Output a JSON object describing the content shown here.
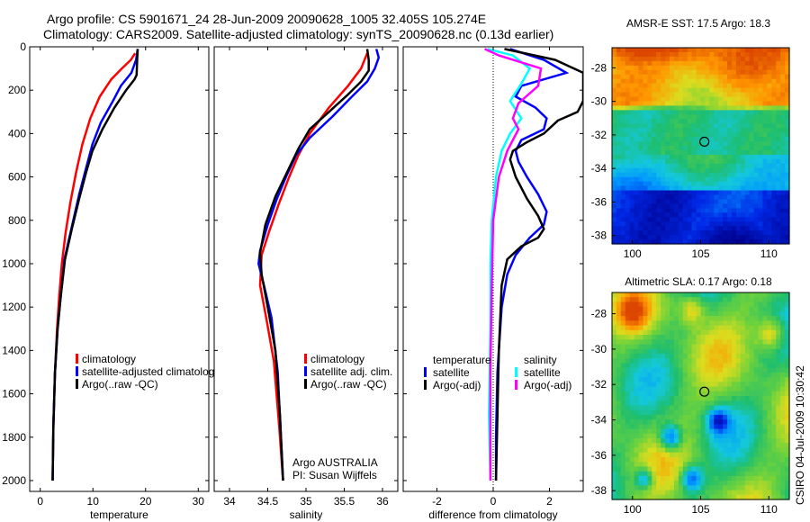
{
  "header": {
    "line1": "Argo profile: CS 5901671_24 28-Jun-2009 20090628_1005 32.405S 105.274E",
    "line2": "Climatology: CARS2009. Satellite-adjusted climatology: synTS_20090628.nc (0.13d earlier)"
  },
  "footer": {
    "credit": "CSIRO 04-Jul-2009 10:30:42"
  },
  "colors": {
    "climatology": "#ff0000",
    "satellite": "#0000ff",
    "argo": "#000000",
    "sal_satellite": "#00ffff",
    "sal_argo": "#ff00ff"
  },
  "chart_data": [
    {
      "type": "line",
      "name": "temperature-profile",
      "xlabel": "temperature",
      "ylabel": "",
      "xlim": [
        -2,
        32
      ],
      "ylim": [
        0,
        2050
      ],
      "y_reversed": true,
      "xticks": [
        "0",
        "10",
        "20",
        "30"
      ],
      "xtick_values": [
        0,
        10,
        20,
        30
      ],
      "yticks": [
        "0",
        "200",
        "400",
        "600",
        "800",
        "1000",
        "1200",
        "1400",
        "1600",
        "1800",
        "2000"
      ],
      "ytick_values": [
        0,
        200,
        400,
        600,
        800,
        1000,
        1200,
        1400,
        1600,
        1800,
        2000
      ],
      "legend": [
        {
          "label": "climatology",
          "color_key": "climatology"
        },
        {
          "label": "satellite-adjusted climatolog",
          "color_key": "satellite"
        },
        {
          "label": "Argo(..raw -QC)",
          "color_key": "argo"
        }
      ],
      "series": [
        {
          "name": "climatology",
          "color_key": "climatology",
          "x": [
            18,
            17.2,
            15.5,
            13.5,
            11.3,
            9.5,
            8,
            6.8,
            5.7,
            4.8,
            4.1,
            3.6,
            3.2,
            2.8,
            2.5,
            2.35
          ],
          "y": [
            30,
            60,
            100,
            150,
            230,
            330,
            450,
            580,
            720,
            860,
            1000,
            1150,
            1300,
            1500,
            1750,
            2000
          ]
        },
        {
          "name": "satellite-adjusted climatology",
          "color_key": "satellite",
          "x": [
            18.5,
            18.2,
            17.3,
            15.3,
            13.8,
            11.5,
            9.9,
            8.7,
            7.4,
            6.0,
            4.6,
            3.9,
            3.3,
            2.8,
            2.5,
            2.35
          ],
          "y": [
            10,
            60,
            120,
            180,
            250,
            350,
            450,
            560,
            680,
            830,
            980,
            1150,
            1300,
            1500,
            1750,
            2000
          ]
        },
        {
          "name": "Argo",
          "color_key": "argo",
          "x": [
            18.5,
            18.4,
            18.3,
            17.9,
            16.3,
            14.1,
            11.8,
            9.9,
            8.7,
            7.4,
            6.0,
            4.7,
            3.9,
            3.3,
            2.8,
            2.5,
            2.35
          ],
          "y": [
            10,
            60,
            130,
            150,
            200,
            280,
            380,
            480,
            580,
            700,
            840,
            980,
            1150,
            1300,
            1500,
            1750,
            2000
          ]
        }
      ]
    },
    {
      "type": "line",
      "name": "salinity-profile",
      "xlabel": "salinity",
      "xlim": [
        33.8,
        36.2
      ],
      "ylim": [
        0,
        2050
      ],
      "y_reversed": true,
      "xticks": [
        "34",
        "34.5",
        "35",
        "35.5",
        "36"
      ],
      "xtick_values": [
        34,
        34.5,
        35,
        35.5,
        36
      ],
      "legend": [
        {
          "label": "climatology",
          "color_key": "climatology"
        },
        {
          "label": "satellite adj. clim.",
          "color_key": "satellite"
        },
        {
          "label": "Argo(..raw -QC)",
          "color_key": "argo"
        }
      ],
      "annotations": [
        "Argo AUSTRALIA",
        "PI: Susan Wijffels"
      ],
      "series": [
        {
          "name": "climatology",
          "color_key": "climatology",
          "x": [
            35.8,
            35.72,
            35.55,
            35.3,
            35.05,
            34.9,
            34.78,
            34.65,
            34.52,
            34.42,
            34.4,
            34.48,
            34.58,
            34.65,
            34.7
          ],
          "y": [
            30,
            100,
            180,
            280,
            400,
            500,
            600,
            720,
            850,
            960,
            1100,
            1250,
            1450,
            1750,
            2000
          ]
        },
        {
          "name": "satellite adj. clim.",
          "color_key": "satellite",
          "x": [
            35.92,
            35.95,
            35.9,
            35.8,
            35.6,
            35.35,
            35.05,
            34.87,
            34.75,
            34.62,
            34.5,
            34.4,
            34.38,
            34.45,
            34.55,
            34.63,
            34.7
          ],
          "y": [
            10,
            50,
            100,
            160,
            230,
            320,
            420,
            500,
            590,
            700,
            820,
            940,
            1000,
            1100,
            1250,
            1500,
            2000
          ]
        },
        {
          "name": "Argo",
          "color_key": "argo",
          "x": [
            35.8,
            35.82,
            35.82,
            35.72,
            35.55,
            35.3,
            35.05,
            34.9,
            34.75,
            34.6,
            34.47,
            34.4,
            34.42,
            34.5,
            34.6,
            34.66,
            34.7
          ],
          "y": [
            10,
            60,
            110,
            160,
            220,
            300,
            380,
            470,
            580,
            690,
            820,
            950,
            1050,
            1200,
            1400,
            1700,
            2000
          ]
        }
      ]
    },
    {
      "type": "line",
      "name": "difference-profile",
      "xlabel": "difference from climatology",
      "xlim": [
        -3.2,
        3.2
      ],
      "ylim": [
        0,
        2050
      ],
      "y_reversed": true,
      "xticks": [
        "-2",
        "0",
        "2"
      ],
      "xtick_values": [
        -2,
        0,
        2
      ],
      "zero_line": true,
      "legend_groups": [
        {
          "title": "temperature",
          "items": [
            {
              "label": "satellite",
              "color_key": "satellite"
            },
            {
              "label": "Argo(-adj)",
              "color_key": "argo"
            }
          ]
        },
        {
          "title": "salinity",
          "items": [
            {
              "label": "satellite",
              "color_key": "sal_satellite"
            },
            {
              "label": "Argo(-adj)",
              "color_key": "sal_argo"
            }
          ]
        }
      ],
      "series": [
        {
          "name": "temperature satellite",
          "color_key": "satellite",
          "x": [
            0.6,
            1.8,
            2.6,
            1.0,
            0.8,
            1.5,
            1.9,
            1.8,
            1.0,
            0.8,
            0.9,
            1.2,
            1.6,
            1.9,
            1.8,
            1.3,
            0.8,
            0.5,
            0.3,
            0.15,
            0.1,
            0.1
          ],
          "y": [
            10,
            60,
            120,
            180,
            230,
            280,
            330,
            380,
            430,
            480,
            530,
            600,
            680,
            760,
            820,
            880,
            960,
            1050,
            1200,
            1500,
            1800,
            2000
          ]
        },
        {
          "name": "temperature Argo(-adj)",
          "color_key": "argo",
          "x": [
            0.4,
            2.2,
            3.2,
            3.2,
            3.0,
            2.3,
            1.8,
            1.2,
            0.7,
            0.6,
            0.8,
            1.2,
            1.6,
            1.8,
            1.6,
            1.0,
            0.5,
            0.3,
            0.2,
            0.15,
            0.1
          ],
          "y": [
            10,
            60,
            120,
            250,
            300,
            340,
            400,
            440,
            480,
            520,
            600,
            700,
            780,
            840,
            880,
            920,
            980,
            1100,
            1400,
            1700,
            2000
          ]
        },
        {
          "name": "salinity satellite",
          "color_key": "sal_satellite",
          "x": [
            -0.2,
            0.7,
            1.3,
            1.0,
            0.6,
            1.0,
            0.6,
            0.3,
            0.1,
            -0.05,
            -0.1,
            -0.1,
            -0.15,
            -0.1
          ],
          "y": [
            10,
            40,
            100,
            170,
            250,
            330,
            400,
            480,
            600,
            800,
            1000,
            1300,
            1700,
            2000
          ]
        },
        {
          "name": "salinity Argo(-adj)",
          "color_key": "sal_argo",
          "x": [
            -0.3,
            0.2,
            1.7,
            1.6,
            0.9,
            0.7,
            0.9,
            0.5,
            0.2,
            0.0,
            -0.05,
            -0.1,
            -0.1
          ],
          "y": [
            10,
            40,
            100,
            180,
            260,
            330,
            380,
            480,
            600,
            800,
            1100,
            1500,
            2000
          ]
        }
      ]
    },
    {
      "type": "heatmap",
      "name": "sst-map",
      "title": "AMSR-E SST: 17.5 Argo: 18.3",
      "xlim": [
        98.5,
        111.5
      ],
      "ylim": [
        -38.5,
        -26.8
      ],
      "xticks": [
        "100",
        "105",
        "110"
      ],
      "xtick_values": [
        100,
        105,
        110
      ],
      "yticks": [
        "-28",
        "-30",
        "-32",
        "-34",
        "-36",
        "-38"
      ],
      "ytick_values": [
        -28,
        -30,
        -32,
        -34,
        -36,
        -38
      ],
      "marker": {
        "lon": 105.274,
        "lat": -32.405
      }
    },
    {
      "type": "heatmap",
      "name": "sla-map",
      "title": "Altimetric SLA: 0.17 Argo: 0.18",
      "xlim": [
        98.5,
        111.5
      ],
      "ylim": [
        -38.5,
        -26.8
      ],
      "xticks": [
        "100",
        "105",
        "110"
      ],
      "xtick_values": [
        100,
        105,
        110
      ],
      "yticks": [
        "-28",
        "-30",
        "-32",
        "-34",
        "-36",
        "-38"
      ],
      "ytick_values": [
        -28,
        -30,
        -32,
        -34,
        -36,
        -38
      ],
      "marker": {
        "lon": 105.274,
        "lat": -32.405
      }
    }
  ]
}
